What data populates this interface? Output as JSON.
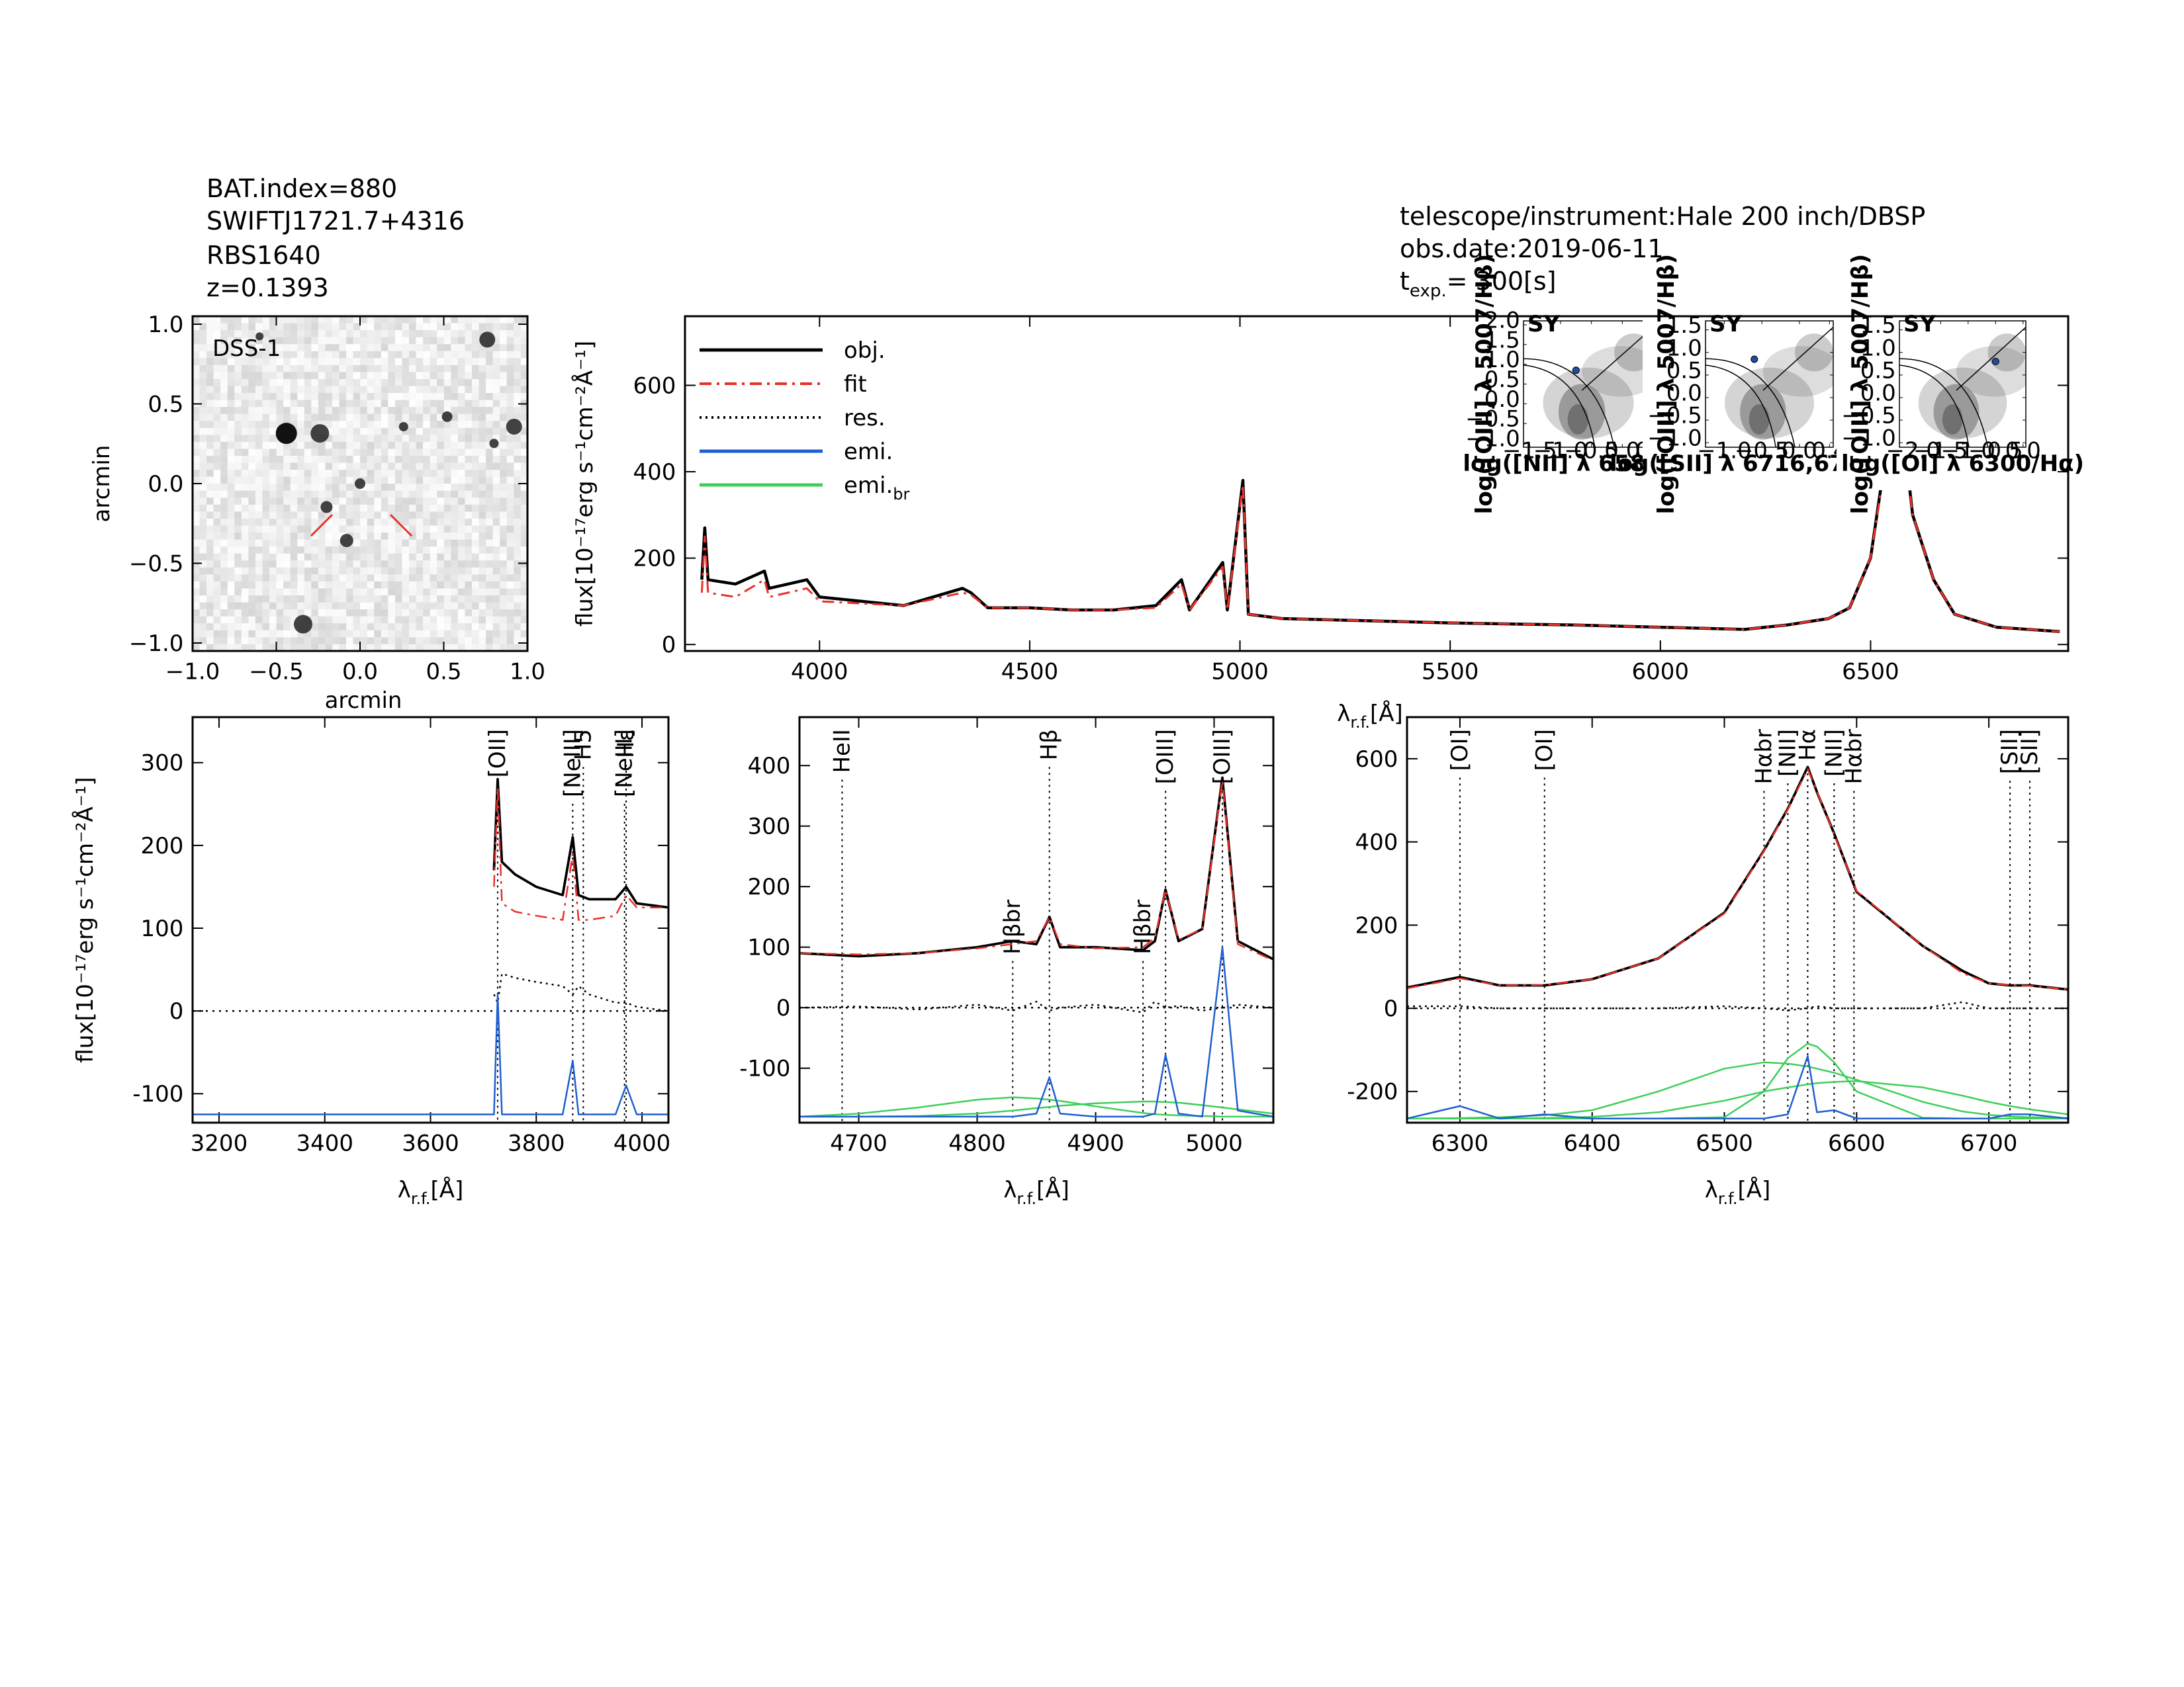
{
  "header": {
    "index": "BAT.index=880",
    "swift": "SWIFTJ1721.7+4316",
    "name": "RBS1640",
    "redshift": "z=0.1393",
    "telescope": "telescope/instrument:Hale 200 inch/DBSP",
    "date": "obs.date:2019-06-11",
    "exposure": "t",
    "exposure_sub": "exp.",
    "exposure_value": "=  300[s]"
  },
  "chart_data": [
    {
      "type": "image",
      "label": "DSS-1",
      "xlabel": "arcmin",
      "ylabel": "arcmin",
      "xlim": [
        -1.0,
        1.0
      ],
      "ylim": [
        -1.05,
        1.05
      ],
      "xticks": [
        {
          "value": -1,
          "label": "−1.0"
        },
        {
          "value": -0.5,
          "label": "−0.5"
        },
        {
          "value": 0,
          "label": "0.0"
        },
        0.5,
        {
          "value": 1,
          "label": "1.0"
        }
      ],
      "yticks": [
        {
          "value": -1,
          "label": "−1.0"
        },
        {
          "value": -0.5,
          "label": "−0.5"
        },
        {
          "value": 0,
          "label": "0.0"
        },
        0.5,
        {
          "value": 1,
          "label": "1.0"
        }
      ]
    },
    {
      "type": "line",
      "ylabel": "flux[10⁻¹⁷erg s⁻¹cm⁻²Å⁻¹]",
      "xlabel": "λ",
      "xlabel_sub": "r.f.",
      "xlabel_unit": "[Å]",
      "xlim": [
        3680,
        6970
      ],
      "ylim": [
        -15,
        760
      ],
      "xticks": [
        4000,
        4500,
        5000,
        5500,
        6000,
        6500
      ],
      "yticks": [
        0,
        200,
        400,
        600
      ],
      "x": [
        3720,
        3727,
        3735,
        3800,
        3869,
        3880,
        3970,
        4000,
        4100,
        4200,
        4340,
        4360,
        4400,
        4500,
        4600,
        4700,
        4800,
        4861,
        4880,
        4959,
        4970,
        5007,
        5020,
        5100,
        5300,
        5500,
        5800,
        6000,
        6200,
        6300,
        6400,
        6450,
        6500,
        6530,
        6563,
        6600,
        6650,
        6700,
        6800,
        6950
      ],
      "series": [
        {
          "color": "#000000",
          "style": "solid",
          "values": [
            150,
            270,
            150,
            140,
            170,
            130,
            150,
            110,
            100,
            90,
            130,
            120,
            85,
            85,
            80,
            80,
            90,
            150,
            80,
            190,
            80,
            380,
            70,
            60,
            55,
            50,
            45,
            40,
            35,
            45,
            60,
            85,
            200,
            400,
            620,
            300,
            150,
            70,
            40,
            30
          ]
        },
        {
          "color": "#e8302a",
          "style": "dashdot",
          "values": [
            120,
            250,
            120,
            110,
            150,
            110,
            130,
            100,
            95,
            90,
            120,
            115,
            85,
            85,
            80,
            80,
            85,
            140,
            80,
            180,
            80,
            370,
            70,
            60,
            55,
            50,
            45,
            40,
            35,
            45,
            60,
            85,
            200,
            390,
            610,
            300,
            150,
            70,
            40,
            30
          ]
        }
      ],
      "legend": [
        {
          "name": "obj.",
          "color": "#000000",
          "style": "solid"
        },
        {
          "name": "fit",
          "color": "#e8302a",
          "style": "dashdot"
        },
        {
          "name": "res.",
          "color": "#000000",
          "style": "dotted"
        },
        {
          "name": "emi.",
          "color": "#1f5fcf",
          "style": "solid"
        },
        {
          "name": "emi.",
          "sub": "br",
          "color": "#3ecf5a",
          "style": "solid"
        }
      ]
    },
    {
      "type": "scatter",
      "label": "SY",
      "xlabel": "log([NII] λ 6583/Hα)",
      "ylabel": "log([OIII] λ 5007/Hβ)",
      "xlim": [
        -1.6,
        0.5
      ],
      "ylim": [
        -1.1,
        2.1
      ],
      "xticks": [
        {
          "value": -1.5,
          "label": "−1.5"
        },
        {
          "value": -1,
          "label": "−1.0"
        },
        {
          "value": -0.5,
          "label": "−0.5"
        },
        {
          "value": 0,
          "label": "0.0"
        },
        0.5
      ],
      "yticks": [
        {
          "value": -1,
          "label": "−1.0"
        },
        {
          "value": -0.5,
          "label": "−0.5"
        },
        {
          "value": 0,
          "label": "0.0"
        },
        0.5,
        {
          "value": 1,
          "label": "1.0"
        },
        1.5,
        {
          "value": 2,
          "label": "2.0"
        }
      ],
      "x": [
        -0.75
      ],
      "values": [
        0.85
      ],
      "color": "#1f4fa0"
    },
    {
      "type": "scatter",
      "label": "SY",
      "xlabel": "log([SII] λ 6716,6730/Hα)",
      "ylabel": "log([OIII] λ 5007/Hβ)",
      "xlim": [
        -1.25,
        0.45
      ],
      "ylim": [
        -1.1,
        1.7
      ],
      "xticks": [
        {
          "value": -1,
          "label": "−1.0"
        },
        {
          "value": -0.5,
          "label": "−0.5"
        },
        {
          "value": 0,
          "label": "0.0"
        },
        0.4
      ],
      "yticks": [
        {
          "value": -1,
          "label": "−1.0"
        },
        {
          "value": -0.5,
          "label": "−0.5"
        },
        {
          "value": 0,
          "label": "0.0"
        },
        0.5,
        {
          "value": 1,
          "label": "1.0"
        },
        1.5
      ],
      "x": [
        -0.6
      ],
      "values": [
        0.85
      ],
      "color": "#1f4fa0"
    },
    {
      "type": "scatter",
      "label": "SY",
      "xlabel": "log([OI] λ 6300/Hα)",
      "ylabel": "log([OIII] λ 5007/Hβ)",
      "xlim": [
        -2.25,
        0.05
      ],
      "ylim": [
        -1.1,
        1.7
      ],
      "xticks": [
        {
          "value": -2,
          "label": "−2.0"
        },
        {
          "value": -1.5,
          "label": "−1.5"
        },
        {
          "value": -1,
          "label": "−1.0"
        },
        {
          "value": -0.5,
          "label": "−0.5"
        },
        {
          "value": 0,
          "label": "0.0"
        }
      ],
      "yticks": [
        {
          "value": -1,
          "label": "−1.0"
        },
        {
          "value": -0.5,
          "label": "−0.5"
        },
        {
          "value": 0,
          "label": "0.0"
        },
        0.5,
        {
          "value": 1,
          "label": "1.0"
        },
        1.5
      ],
      "x": [
        -0.5
      ],
      "values": [
        0.8
      ],
      "color": "#1f4fa0"
    },
    {
      "type": "line",
      "ylabel": "flux[10⁻¹⁷erg s⁻¹cm⁻²Å⁻¹]",
      "xlabel": "λ",
      "xlabel_sub": "r.f.",
      "xlabel_unit": "[Å]",
      "xlim": [
        3150,
        4050
      ],
      "ylim": [
        -135,
        355
      ],
      "xticks": [
        3200,
        3400,
        3600,
        3800,
        4000
      ],
      "yticks": [
        -100,
        0,
        100,
        200,
        300
      ],
      "x": [
        3150,
        3720,
        3727,
        3735,
        3760,
        3800,
        3850,
        3869,
        3880,
        3900,
        3950,
        3970,
        3990,
        4050
      ],
      "series": [
        {
          "color": "#000000",
          "style": "solid",
          "values": [
            null,
            170,
            280,
            180,
            165,
            150,
            140,
            210,
            140,
            135,
            135,
            150,
            130,
            125
          ]
        },
        {
          "color": "#e8302a",
          "style": "dashdot",
          "values": [
            null,
            150,
            270,
            130,
            120,
            115,
            110,
            190,
            110,
            110,
            115,
            140,
            125,
            125
          ]
        },
        {
          "color": "#000000",
          "style": "dotted",
          "values": [
            null,
            20,
            10,
            45,
            40,
            35,
            30,
            20,
            30,
            20,
            10,
            10,
            5,
            0
          ]
        },
        {
          "color": "#1f5fcf",
          "style": "solid",
          "values": [
            -125,
            -125,
            20,
            -125,
            -125,
            -125,
            -125,
            -60,
            -125,
            -125,
            -125,
            -90,
            -125,
            -125
          ]
        }
      ],
      "annotations": [
        {
          "label": "[OII]",
          "x": 3727,
          "color": "#000000"
        },
        {
          "label": "[NeIII]",
          "x": 3869,
          "color": "#000000"
        },
        {
          "label": "H5",
          "x": 3889,
          "color": "#e8302a"
        },
        {
          "label": "[NeIII]",
          "x": 3967,
          "color": "#000000"
        },
        {
          "label": "Hε",
          "x": 3970,
          "color": "#000000"
        }
      ]
    },
    {
      "type": "line",
      "xlabel": "λ",
      "xlabel_sub": "r.f.",
      "xlabel_unit": "[Å]",
      "xlim": [
        4650,
        5050
      ],
      "ylim": [
        -190,
        480
      ],
      "xticks": [
        4700,
        4800,
        4900,
        5000
      ],
      "yticks": [
        -100,
        0,
        100,
        200,
        300,
        400
      ],
      "x": [
        4650,
        4700,
        4750,
        4800,
        4830,
        4850,
        4861,
        4870,
        4900,
        4940,
        4950,
        4959,
        4970,
        4990,
        5007,
        5020,
        5050
      ],
      "series": [
        {
          "color": "#000000",
          "style": "solid",
          "values": [
            90,
            85,
            90,
            100,
            110,
            105,
            150,
            100,
            100,
            95,
            110,
            195,
            110,
            130,
            380,
            110,
            80
          ]
        },
        {
          "color": "#e8302a",
          "style": "dashdot",
          "values": [
            90,
            88,
            90,
            98,
            105,
            110,
            150,
            105,
            98,
            100,
            115,
            195,
            112,
            130,
            375,
            105,
            78
          ]
        },
        {
          "color": "#000000",
          "style": "dotted",
          "values": [
            0,
            2,
            -3,
            5,
            -5,
            10,
            -5,
            0,
            5,
            -8,
            10,
            0,
            3,
            -5,
            0,
            5,
            0
          ]
        },
        {
          "color": "#3ecf5a",
          "style": "solid",
          "values": [
            -180,
            -175,
            -165,
            -152,
            -148,
            -150,
            -152,
            -154,
            -163,
            -174,
            -176,
            -177,
            -178,
            -179,
            -180,
            -180,
            -180
          ]
        },
        {
          "color": "#3ecf5a",
          "style": "solid",
          "values": [
            -180,
            -180,
            -179,
            -175,
            -170,
            -166,
            -164,
            -162,
            -158,
            -155,
            -155,
            -156,
            -157,
            -161,
            -165,
            -168,
            -175
          ]
        },
        {
          "color": "#1f5fcf",
          "style": "solid",
          "values": [
            -180,
            -180,
            -180,
            -180,
            -180,
            -175,
            -115,
            -175,
            -180,
            -180,
            -175,
            -78,
            -175,
            -180,
            100,
            -170,
            -180
          ]
        }
      ],
      "annotations": [
        {
          "label": "HeII",
          "x": 4686,
          "color": "#e8302a"
        },
        {
          "label": "Hβbr",
          "x": 4830,
          "color": "#000000",
          "placement": "middle"
        },
        {
          "label": "Hβ",
          "x": 4861,
          "color": "#000000"
        },
        {
          "label": "Hβbr",
          "x": 4940,
          "color": "#000000",
          "placement": "middle"
        },
        {
          "label": "[OIII]",
          "x": 4959,
          "color": "#000000"
        },
        {
          "label": "[OIII]",
          "x": 5007,
          "color": "#000000"
        }
      ]
    },
    {
      "type": "line",
      "xlabel": "λ",
      "xlabel_sub": "r.f.",
      "xlabel_unit": "[Å]",
      "xlim": [
        6260,
        6760
      ],
      "ylim": [
        -275,
        700
      ],
      "xticks": [
        6300,
        6400,
        6500,
        6600,
        6700
      ],
      "yticks": [
        -200,
        0,
        200,
        400,
        600
      ],
      "x": [
        6260,
        6300,
        6330,
        6364,
        6400,
        6450,
        6500,
        6530,
        6548,
        6563,
        6570,
        6583,
        6600,
        6650,
        6680,
        6700,
        6716,
        6731,
        6760
      ],
      "series": [
        {
          "color": "#000000",
          "style": "solid",
          "values": [
            50,
            75,
            55,
            55,
            70,
            120,
            230,
            380,
            480,
            580,
            520,
            420,
            280,
            150,
            90,
            60,
            55,
            55,
            45
          ]
        },
        {
          "color": "#e8302a",
          "style": "dashdot",
          "values": [
            48,
            72,
            55,
            56,
            70,
            120,
            228,
            378,
            478,
            575,
            522,
            418,
            282,
            150,
            85,
            60,
            56,
            54,
            45
          ]
        },
        {
          "color": "#000000",
          "style": "dotted",
          "values": [
            5,
            5,
            0,
            0,
            0,
            0,
            5,
            0,
            -5,
            0,
            5,
            0,
            0,
            0,
            15,
            0,
            0,
            0,
            0
          ]
        },
        {
          "color": "#3ecf5a",
          "style": "solid",
          "values": [
            -265,
            -264,
            -262,
            -257,
            -245,
            -200,
            -145,
            -130,
            -133,
            -140,
            -145,
            -155,
            -172,
            -225,
            -248,
            -256,
            -260,
            -262,
            -264
          ]
        },
        {
          "color": "#3ecf5a",
          "style": "solid",
          "values": [
            -265,
            -265,
            -265,
            -265,
            -265,
            -265,
            -262,
            -200,
            -120,
            -85,
            -92,
            -130,
            -200,
            -263,
            -265,
            -265,
            -265,
            -265,
            -265
          ]
        },
        {
          "color": "#3ecf5a",
          "style": "solid",
          "values": [
            -265,
            -265,
            -265,
            -264,
            -261,
            -250,
            -222,
            -200,
            -190,
            -183,
            -180,
            -177,
            -175,
            -190,
            -210,
            -225,
            -235,
            -243,
            -255
          ]
        },
        {
          "color": "#1f5fcf",
          "style": "solid",
          "values": [
            -265,
            -235,
            -265,
            -255,
            -265,
            -265,
            -265,
            -265,
            -255,
            -115,
            -250,
            -245,
            -265,
            -265,
            -265,
            -265,
            -255,
            -255,
            -265
          ]
        }
      ],
      "annotations": [
        {
          "label": "[OI]",
          "x": 6300,
          "color": "#000000"
        },
        {
          "label": "[OI]",
          "x": 6364,
          "color": "#000000"
        },
        {
          "label": "Hαbr",
          "x": 6530,
          "color": "#000000"
        },
        {
          "label": "[NII]",
          "x": 6548,
          "color": "#000000"
        },
        {
          "label": "Hα",
          "x": 6563,
          "color": "#000000"
        },
        {
          "label": "[NII]",
          "x": 6583,
          "color": "#000000"
        },
        {
          "label": "Hαbr",
          "x": 6598,
          "color": "#000000"
        },
        {
          "label": "[SII]",
          "x": 6716,
          "color": "#000000"
        },
        {
          "label": "[SII]",
          "x": 6731,
          "color": "#000000"
        }
      ]
    }
  ]
}
